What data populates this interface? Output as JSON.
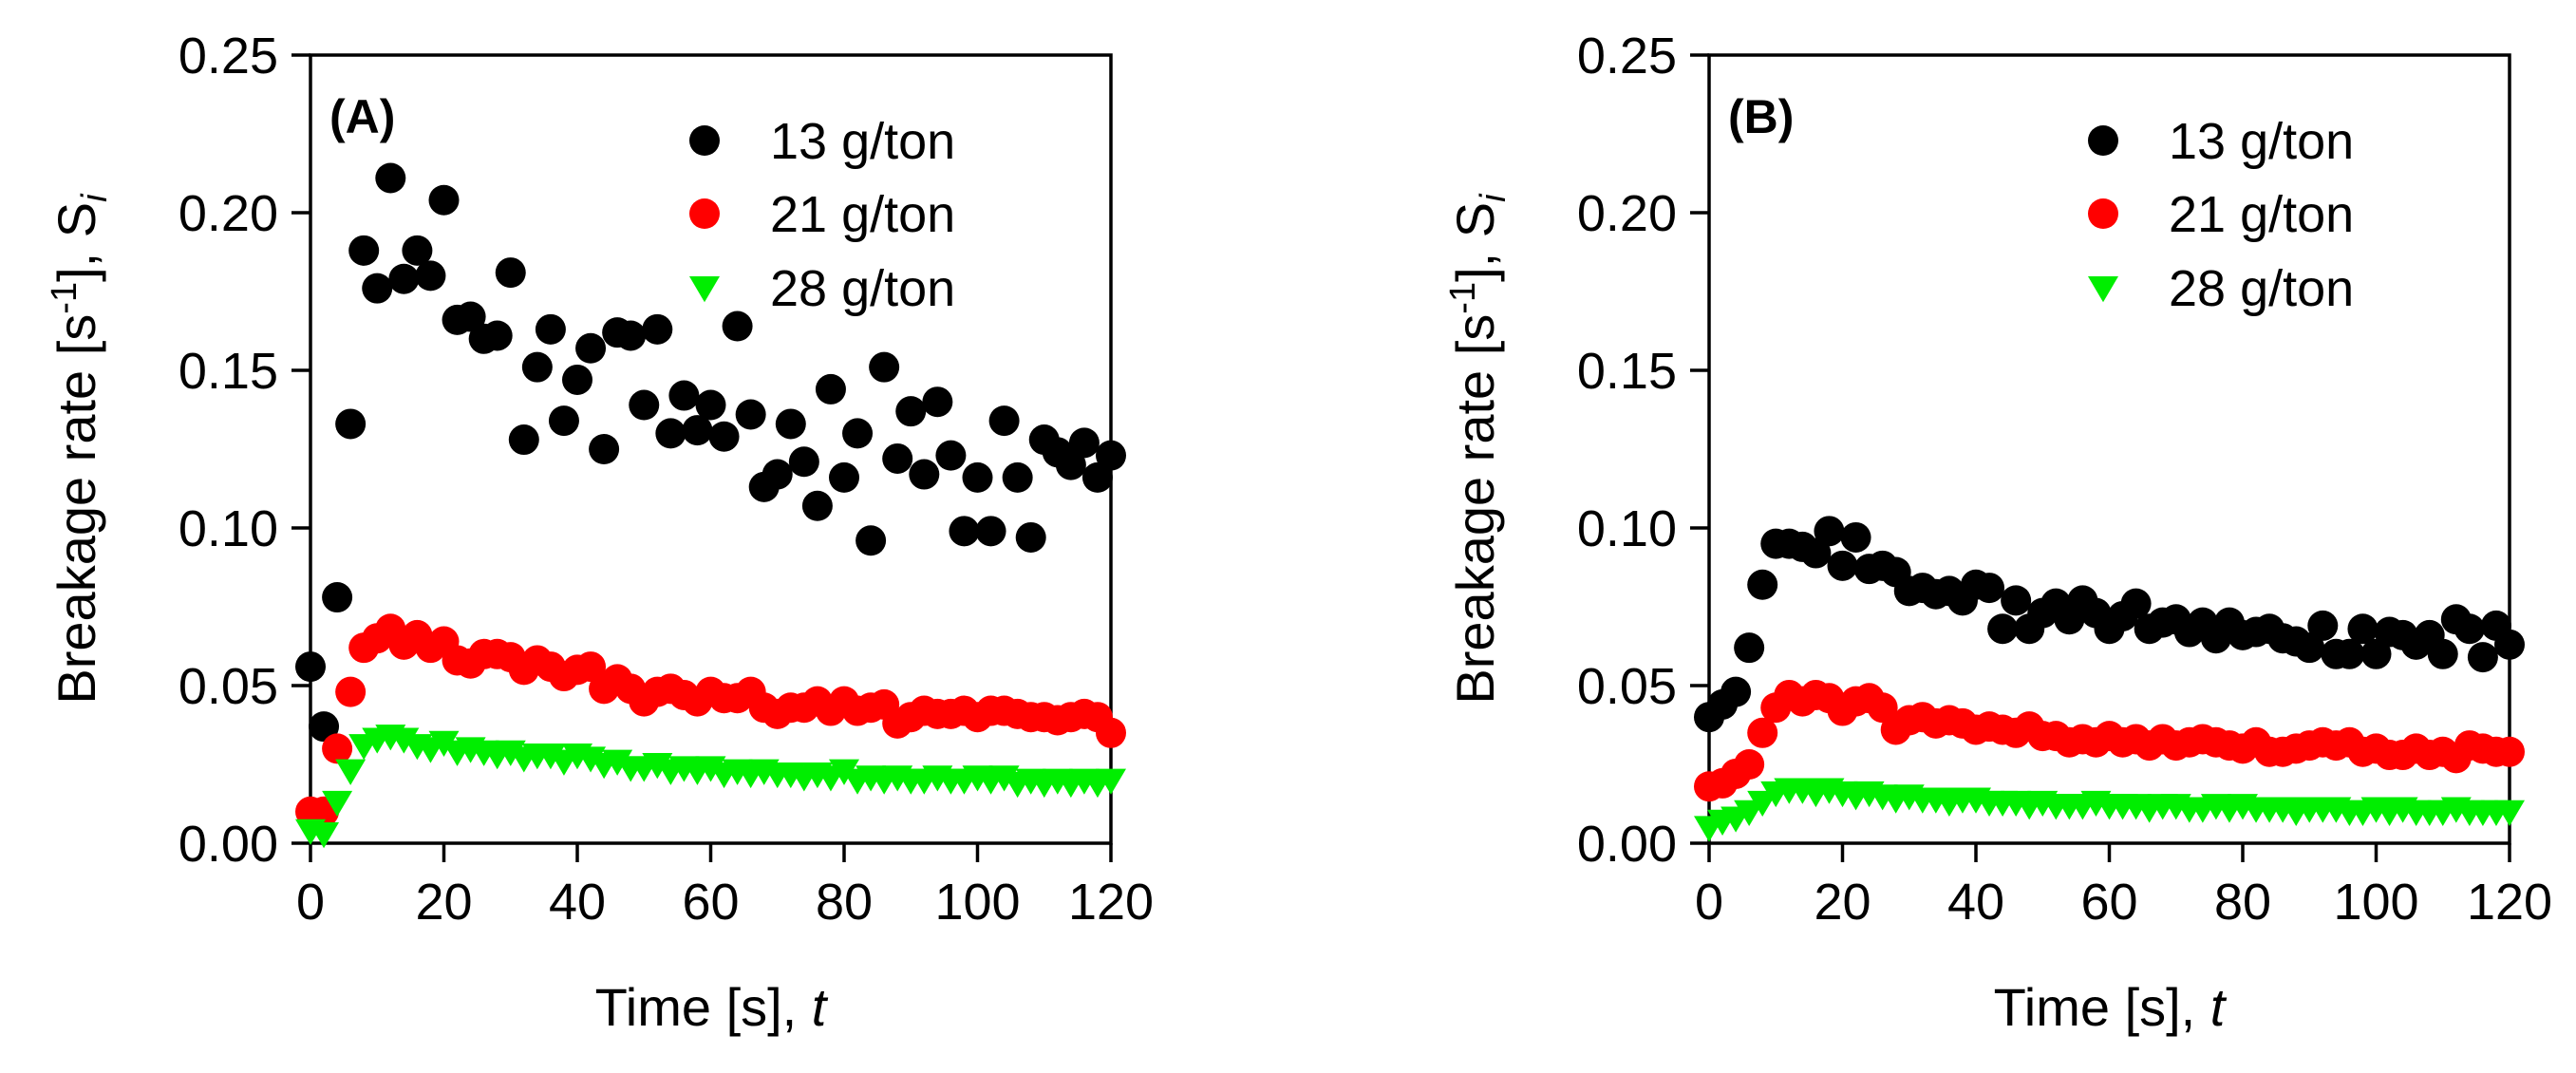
{
  "figure": {
    "panels": [
      "A",
      "B"
    ]
  },
  "chart_data": [
    {
      "type": "scatter",
      "panel_label": "(A)",
      "title": "",
      "xlabel": "Time [s], ",
      "xlabel_var": "t",
      "ylabel_main": "Breakage rate [s",
      "ylabel_sup": "-1",
      "ylabel_tail": "], S",
      "ylabel_sub": "i",
      "xlim": [
        0,
        120
      ],
      "ylim": [
        0,
        0.25
      ],
      "xticks": [
        "0",
        "20",
        "40",
        "60",
        "80",
        "100",
        "120"
      ],
      "yticks": [
        "0.00",
        "0.05",
        "0.10",
        "0.15",
        "0.20",
        "0.25"
      ],
      "legend_position": "top-right",
      "series": [
        {
          "name": "13 g/ton",
          "marker": "circle",
          "color": "#000000",
          "x": [
            0,
            2,
            4,
            6,
            8,
            10,
            12,
            14,
            16,
            18,
            20,
            22,
            24,
            26,
            28,
            30,
            32,
            34,
            36,
            38,
            40,
            42,
            44,
            46,
            48,
            50,
            52,
            54,
            56,
            58,
            60,
            62,
            64,
            66,
            68,
            70,
            72,
            74,
            76,
            78,
            80,
            82,
            84,
            86,
            88,
            90,
            92,
            94,
            96,
            98,
            100,
            102,
            104,
            106,
            108,
            110,
            112,
            114,
            116,
            118,
            120
          ],
          "y": [
            0.056,
            0.037,
            0.078,
            0.133,
            0.188,
            0.176,
            0.211,
            0.179,
            0.188,
            0.18,
            0.204,
            0.166,
            0.167,
            0.16,
            0.161,
            0.181,
            0.128,
            0.151,
            0.163,
            0.134,
            0.147,
            0.157,
            0.125,
            0.162,
            0.161,
            0.139,
            0.163,
            0.13,
            0.142,
            0.131,
            0.139,
            0.129,
            0.164,
            0.136,
            0.113,
            0.117,
            0.133,
            0.121,
            0.107,
            0.144,
            0.116,
            0.13,
            0.096,
            0.151,
            0.122,
            0.137,
            0.117,
            0.14,
            0.123,
            0.099,
            0.116,
            0.099,
            0.134,
            0.116,
            0.097,
            0.128,
            0.124,
            0.12,
            0.127,
            0.116,
            0.123
          ]
        },
        {
          "name": "21 g/ton",
          "marker": "circle",
          "color": "#ff0000",
          "x": [
            0,
            2,
            4,
            6,
            8,
            10,
            12,
            14,
            16,
            18,
            20,
            22,
            24,
            26,
            28,
            30,
            32,
            34,
            36,
            38,
            40,
            42,
            44,
            46,
            48,
            50,
            52,
            54,
            56,
            58,
            60,
            62,
            64,
            66,
            68,
            70,
            72,
            74,
            76,
            78,
            80,
            82,
            84,
            86,
            88,
            90,
            92,
            94,
            96,
            98,
            100,
            102,
            104,
            106,
            108,
            110,
            112,
            114,
            116,
            118,
            120
          ],
          "y": [
            0.01,
            0.01,
            0.03,
            0.048,
            0.062,
            0.065,
            0.068,
            0.063,
            0.066,
            0.062,
            0.064,
            0.058,
            0.057,
            0.06,
            0.06,
            0.059,
            0.055,
            0.058,
            0.056,
            0.053,
            0.055,
            0.056,
            0.049,
            0.052,
            0.049,
            0.045,
            0.048,
            0.049,
            0.047,
            0.045,
            0.048,
            0.046,
            0.046,
            0.048,
            0.043,
            0.041,
            0.043,
            0.043,
            0.045,
            0.042,
            0.045,
            0.042,
            0.043,
            0.044,
            0.038,
            0.04,
            0.042,
            0.041,
            0.041,
            0.042,
            0.04,
            0.042,
            0.042,
            0.041,
            0.04,
            0.04,
            0.039,
            0.04,
            0.041,
            0.04,
            0.035
          ]
        },
        {
          "name": "28 g/ton",
          "marker": "triangle-down",
          "color": "#00ee00",
          "x": [
            0,
            2,
            4,
            6,
            8,
            10,
            12,
            14,
            16,
            18,
            20,
            22,
            24,
            26,
            28,
            30,
            32,
            34,
            36,
            38,
            40,
            42,
            44,
            46,
            48,
            50,
            52,
            54,
            56,
            58,
            60,
            62,
            64,
            66,
            68,
            70,
            72,
            74,
            76,
            78,
            80,
            82,
            84,
            86,
            88,
            90,
            92,
            94,
            96,
            98,
            100,
            102,
            104,
            106,
            108,
            110,
            112,
            114,
            116,
            118,
            120
          ],
          "y": [
            0.004,
            0.003,
            0.013,
            0.023,
            0.031,
            0.033,
            0.034,
            0.033,
            0.031,
            0.03,
            0.032,
            0.029,
            0.03,
            0.029,
            0.028,
            0.029,
            0.027,
            0.028,
            0.028,
            0.026,
            0.028,
            0.027,
            0.025,
            0.026,
            0.024,
            0.024,
            0.025,
            0.023,
            0.024,
            0.023,
            0.024,
            0.022,
            0.023,
            0.022,
            0.023,
            0.022,
            0.022,
            0.021,
            0.022,
            0.021,
            0.023,
            0.02,
            0.021,
            0.02,
            0.021,
            0.02,
            0.02,
            0.021,
            0.02,
            0.02,
            0.021,
            0.02,
            0.021,
            0.019,
            0.02,
            0.019,
            0.02,
            0.019,
            0.02,
            0.019,
            0.02
          ]
        }
      ]
    },
    {
      "type": "scatter",
      "panel_label": "(B)",
      "title": "",
      "xlabel": "Time [s], ",
      "xlabel_var": "t",
      "ylabel_main": "Breakage rate [s",
      "ylabel_sup": "-1",
      "ylabel_tail": "], S",
      "ylabel_sub": "i",
      "xlim": [
        0,
        120
      ],
      "ylim": [
        0,
        0.25
      ],
      "xticks": [
        "0",
        "20",
        "40",
        "60",
        "80",
        "100",
        "120"
      ],
      "yticks": [
        "0.00",
        "0.05",
        "0.10",
        "0.15",
        "0.20",
        "0.25"
      ],
      "legend_position": "top-right",
      "series": [
        {
          "name": "13 g/ton",
          "marker": "circle",
          "color": "#000000",
          "x": [
            0,
            2,
            4,
            6,
            8,
            10,
            12,
            14,
            16,
            18,
            20,
            22,
            24,
            26,
            28,
            30,
            32,
            34,
            36,
            38,
            40,
            42,
            44,
            46,
            48,
            50,
            52,
            54,
            56,
            58,
            60,
            62,
            64,
            66,
            68,
            70,
            72,
            74,
            76,
            78,
            80,
            82,
            84,
            86,
            88,
            90,
            92,
            94,
            96,
            98,
            100,
            102,
            104,
            106,
            108,
            110,
            112,
            114,
            116,
            118,
            120
          ],
          "y": [
            0.04,
            0.044,
            0.048,
            0.062,
            0.082,
            0.095,
            0.095,
            0.094,
            0.092,
            0.099,
            0.088,
            0.097,
            0.087,
            0.088,
            0.086,
            0.08,
            0.081,
            0.079,
            0.08,
            0.077,
            0.082,
            0.081,
            0.068,
            0.077,
            0.068,
            0.073,
            0.076,
            0.071,
            0.077,
            0.073,
            0.068,
            0.072,
            0.076,
            0.068,
            0.07,
            0.071,
            0.067,
            0.07,
            0.065,
            0.07,
            0.066,
            0.067,
            0.068,
            0.065,
            0.064,
            0.062,
            0.069,
            0.06,
            0.06,
            0.068,
            0.06,
            0.067,
            0.066,
            0.063,
            0.066,
            0.06,
            0.071,
            0.068,
            0.059,
            0.069,
            0.063
          ]
        },
        {
          "name": "21 g/ton",
          "marker": "circle",
          "color": "#ff0000",
          "x": [
            0,
            2,
            4,
            6,
            8,
            10,
            12,
            14,
            16,
            18,
            20,
            22,
            24,
            26,
            28,
            30,
            32,
            34,
            36,
            38,
            40,
            42,
            44,
            46,
            48,
            50,
            52,
            54,
            56,
            58,
            60,
            62,
            64,
            66,
            68,
            70,
            72,
            74,
            76,
            78,
            80,
            82,
            84,
            86,
            88,
            90,
            92,
            94,
            96,
            98,
            100,
            102,
            104,
            106,
            108,
            110,
            112,
            114,
            116,
            118,
            120
          ],
          "y": [
            0.018,
            0.019,
            0.022,
            0.025,
            0.035,
            0.043,
            0.047,
            0.045,
            0.047,
            0.046,
            0.042,
            0.045,
            0.046,
            0.043,
            0.036,
            0.039,
            0.04,
            0.038,
            0.039,
            0.038,
            0.036,
            0.037,
            0.036,
            0.035,
            0.037,
            0.034,
            0.034,
            0.032,
            0.033,
            0.032,
            0.034,
            0.032,
            0.033,
            0.031,
            0.033,
            0.031,
            0.032,
            0.033,
            0.032,
            0.031,
            0.03,
            0.032,
            0.029,
            0.029,
            0.03,
            0.031,
            0.032,
            0.031,
            0.032,
            0.029,
            0.03,
            0.028,
            0.028,
            0.03,
            0.028,
            0.029,
            0.027,
            0.031,
            0.03,
            0.029,
            0.029
          ]
        },
        {
          "name": "28 g/ton",
          "marker": "triangle-down",
          "color": "#00ee00",
          "x": [
            0,
            2,
            4,
            6,
            8,
            10,
            12,
            14,
            16,
            18,
            20,
            22,
            24,
            26,
            28,
            30,
            32,
            34,
            36,
            38,
            40,
            42,
            44,
            46,
            48,
            50,
            52,
            54,
            56,
            58,
            60,
            62,
            64,
            66,
            68,
            70,
            72,
            74,
            76,
            78,
            80,
            82,
            84,
            86,
            88,
            90,
            92,
            94,
            96,
            98,
            100,
            102,
            104,
            106,
            108,
            110,
            112,
            114,
            116,
            118,
            120
          ],
          "y": [
            0.005,
            0.007,
            0.008,
            0.01,
            0.013,
            0.016,
            0.017,
            0.017,
            0.016,
            0.017,
            0.016,
            0.015,
            0.016,
            0.015,
            0.014,
            0.015,
            0.014,
            0.014,
            0.013,
            0.014,
            0.014,
            0.013,
            0.013,
            0.013,
            0.012,
            0.013,
            0.012,
            0.012,
            0.012,
            0.013,
            0.012,
            0.012,
            0.012,
            0.011,
            0.012,
            0.012,
            0.011,
            0.011,
            0.012,
            0.011,
            0.012,
            0.011,
            0.011,
            0.011,
            0.01,
            0.011,
            0.011,
            0.011,
            0.01,
            0.01,
            0.011,
            0.01,
            0.011,
            0.01,
            0.01,
            0.01,
            0.011,
            0.01,
            0.01,
            0.01,
            0.01
          ]
        }
      ]
    }
  ]
}
